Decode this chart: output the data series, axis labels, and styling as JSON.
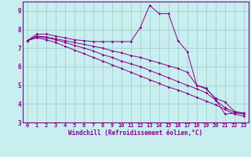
{
  "x": [
    0,
    1,
    2,
    3,
    4,
    5,
    6,
    7,
    8,
    9,
    10,
    11,
    12,
    13,
    14,
    15,
    16,
    17,
    18,
    19,
    20,
    21,
    22,
    23
  ],
  "line1": [
    7.4,
    7.75,
    7.75,
    7.65,
    7.55,
    7.45,
    7.4,
    7.35,
    7.35,
    7.35,
    7.35,
    7.35,
    8.1,
    9.3,
    8.85,
    8.85,
    7.4,
    6.8,
    5.0,
    4.85,
    4.25,
    3.45,
    3.5,
    3.5
  ],
  "line2": [
    7.4,
    7.65,
    7.6,
    7.5,
    7.4,
    7.3,
    7.2,
    7.1,
    7.0,
    6.85,
    6.75,
    6.6,
    6.5,
    6.35,
    6.2,
    6.05,
    5.9,
    5.7,
    5.0,
    4.8,
    4.3,
    4.1,
    3.6,
    3.5
  ],
  "line3": [
    7.4,
    7.6,
    7.55,
    7.45,
    7.3,
    7.15,
    7.0,
    6.85,
    6.65,
    6.5,
    6.3,
    6.15,
    6.0,
    5.8,
    5.6,
    5.4,
    5.2,
    5.0,
    4.8,
    4.6,
    4.2,
    3.8,
    3.55,
    3.45
  ],
  "line4": [
    7.4,
    7.55,
    7.45,
    7.3,
    7.1,
    6.9,
    6.7,
    6.5,
    6.3,
    6.1,
    5.9,
    5.7,
    5.5,
    5.3,
    5.1,
    4.9,
    4.75,
    4.55,
    4.35,
    4.15,
    3.95,
    3.7,
    3.45,
    3.35
  ],
  "line_color": "#880088",
  "bg_color": "#c8eef0",
  "grid_color": "#99ccbb",
  "xlabel": "Windchill (Refroidissement éolien,°C)",
  "ylim": [
    3.0,
    9.5
  ],
  "xlim": [
    -0.5,
    23.5
  ],
  "yticks": [
    3,
    4,
    5,
    6,
    7,
    8,
    9
  ],
  "xticks": [
    0,
    1,
    2,
    3,
    4,
    5,
    6,
    7,
    8,
    9,
    10,
    11,
    12,
    13,
    14,
    15,
    16,
    17,
    18,
    19,
    20,
    21,
    22,
    23
  ],
  "tick_fontsize": 5.0,
  "xlabel_fontsize": 5.5,
  "marker_size": 1.8,
  "line_width": 0.7
}
